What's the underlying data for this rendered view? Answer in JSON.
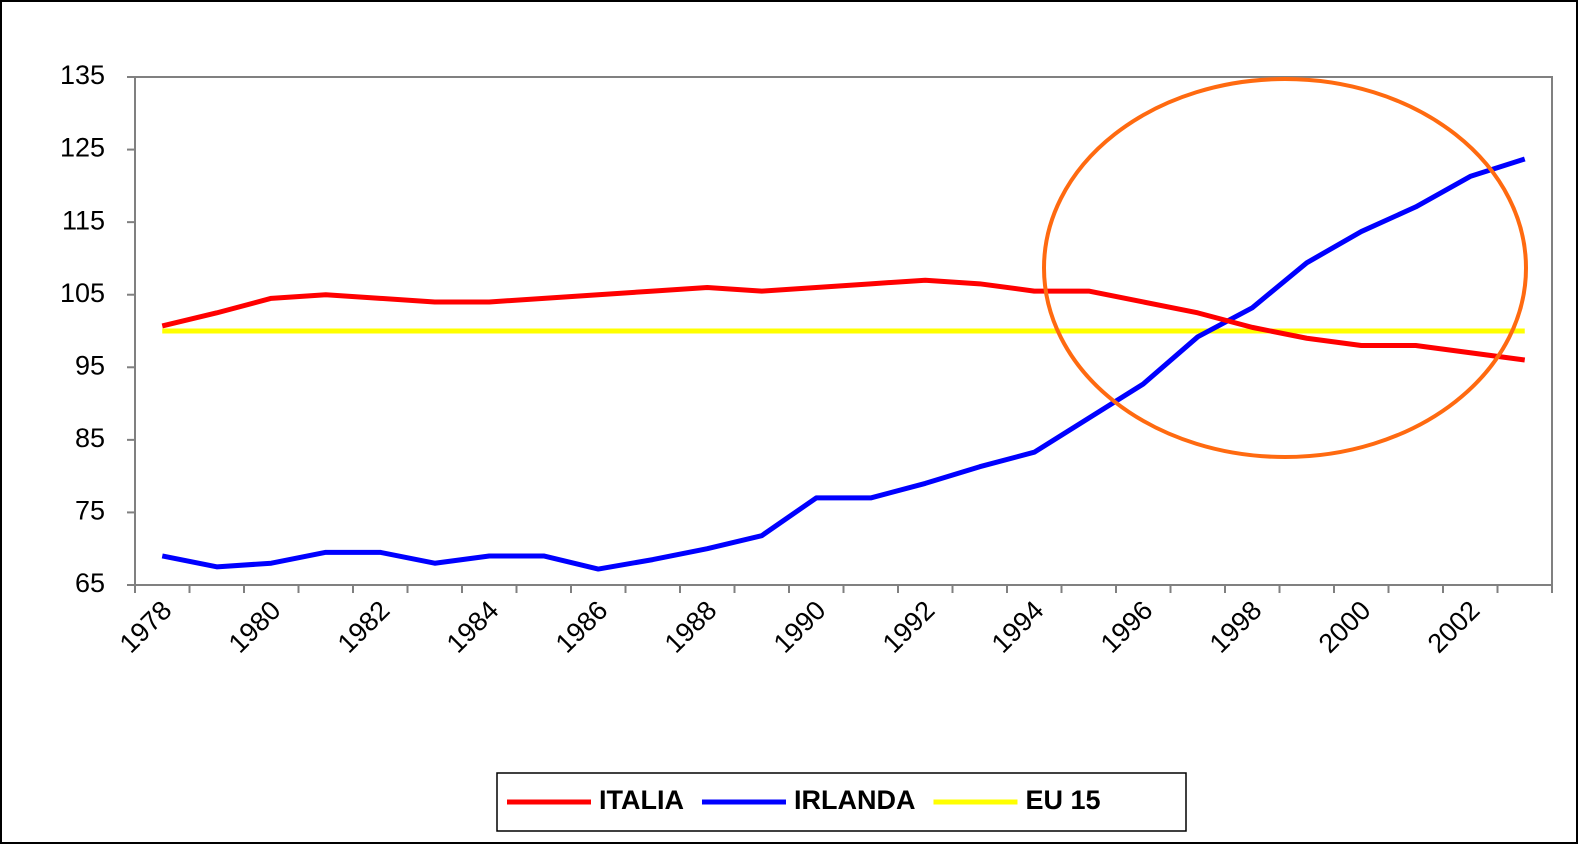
{
  "chart_data": {
    "type": "line",
    "categories": [
      "1978",
      null,
      "1980",
      null,
      "1982",
      null,
      "1984",
      null,
      "1986",
      null,
      "1988",
      null,
      "1990",
      null,
      "1992",
      null,
      "1994",
      null,
      "1996",
      null,
      "1998",
      null,
      "2000",
      null,
      "2002",
      null
    ],
    "series": [
      {
        "name": "ITALIA",
        "color": "#ff0000",
        "values": [
          100.7,
          102.5,
          104.5,
          105,
          104.5,
          104,
          104,
          104.5,
          105,
          105.5,
          106,
          105.5,
          106,
          106.5,
          107,
          106.5,
          105.5,
          105.5,
          104,
          102.5,
          100.5,
          99,
          98,
          98,
          97,
          96
        ]
      },
      {
        "name": "IRLANDA",
        "color": "#0000ff",
        "values": [
          69,
          67.5,
          68,
          69.5,
          69.5,
          68,
          69,
          69,
          67.2,
          68.5,
          70,
          71.8,
          77,
          77,
          79,
          81.3,
          83.3,
          88,
          92.7,
          99.2,
          103.2,
          109.4,
          113.7,
          117.1,
          121.3,
          123.7
        ]
      },
      {
        "name": "EU 15",
        "color": "#ffff00",
        "values": [
          100,
          100,
          100,
          100,
          100,
          100,
          100,
          100,
          100,
          100,
          100,
          100,
          100,
          100,
          100,
          100,
          100,
          100,
          100,
          100,
          100,
          100,
          100,
          100,
          100,
          100
        ]
      }
    ],
    "ylim": [
      65,
      135
    ],
    "yticks": [
      65,
      75,
      85,
      95,
      105,
      115,
      125,
      135
    ],
    "grid": false,
    "legend": "bottom"
  }
}
